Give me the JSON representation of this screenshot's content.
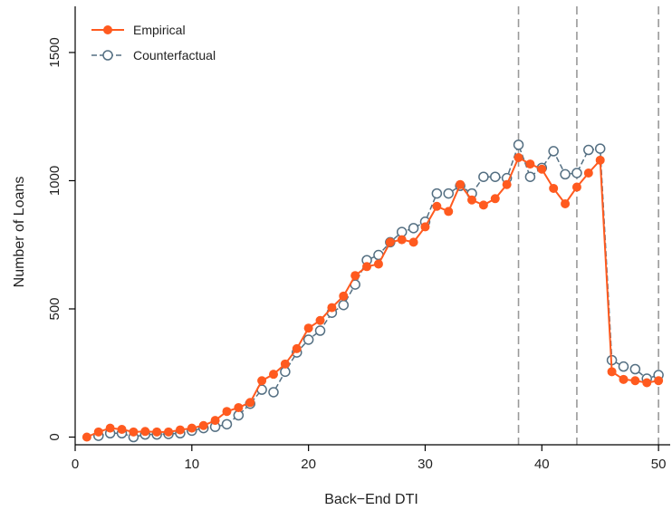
{
  "chart_data": {
    "type": "line",
    "title": "",
    "xlabel": "Back−End DTI",
    "ylabel": "Number of Loans",
    "xlim": [
      0,
      51
    ],
    "ylim": [
      -30,
      1680
    ],
    "xticks": [
      0,
      10,
      20,
      30,
      40,
      50
    ],
    "yticks": [
      0,
      500,
      1000,
      1500
    ],
    "vlines": [
      38,
      43,
      50
    ],
    "grid": false,
    "legend_position": "top-left",
    "series": [
      {
        "name": "Empirical",
        "color": "#ff5a1f",
        "marker": "filled-circle",
        "line": "solid",
        "x": [
          1,
          2,
          3,
          4,
          5,
          6,
          7,
          8,
          9,
          10,
          11,
          12,
          13,
          14,
          15,
          16,
          17,
          18,
          19,
          20,
          21,
          22,
          23,
          24,
          25,
          26,
          27,
          28,
          29,
          30,
          31,
          32,
          33,
          34,
          35,
          36,
          37,
          38,
          39,
          40,
          41,
          42,
          43,
          44,
          45,
          46,
          47,
          48,
          49,
          50
        ],
        "y": [
          0,
          20,
          35,
          30,
          20,
          22,
          20,
          20,
          28,
          35,
          45,
          65,
          100,
          115,
          135,
          220,
          245,
          285,
          345,
          425,
          455,
          505,
          550,
          630,
          665,
          675,
          760,
          770,
          760,
          820,
          900,
          880,
          985,
          925,
          905,
          930,
          985,
          1090,
          1065,
          1045,
          970,
          910,
          975,
          1030,
          1080,
          255,
          225,
          220,
          212,
          220
        ]
      },
      {
        "name": "Counterfactual",
        "color": "#546f82",
        "marker": "hollow-circle",
        "line": "dashed",
        "x": [
          2,
          3,
          4,
          5,
          6,
          7,
          8,
          9,
          10,
          11,
          12,
          13,
          14,
          15,
          16,
          17,
          18,
          19,
          20,
          21,
          22,
          23,
          24,
          25,
          26,
          27,
          28,
          29,
          30,
          31,
          32,
          33,
          34,
          35,
          36,
          37,
          38,
          39,
          40,
          41,
          42,
          43,
          44,
          45,
          46,
          47,
          48,
          49,
          50
        ],
        "y": [
          5,
          15,
          15,
          0,
          10,
          10,
          12,
          15,
          25,
          35,
          40,
          50,
          85,
          130,
          185,
          175,
          255,
          330,
          380,
          415,
          485,
          515,
          595,
          690,
          710,
          760,
          800,
          815,
          840,
          950,
          950,
          980,
          950,
          1015,
          1015,
          1010,
          1140,
          1015,
          1050,
          1115,
          1025,
          1030,
          1120,
          1125,
          300,
          275,
          265,
          228,
          242
        ]
      }
    ]
  }
}
